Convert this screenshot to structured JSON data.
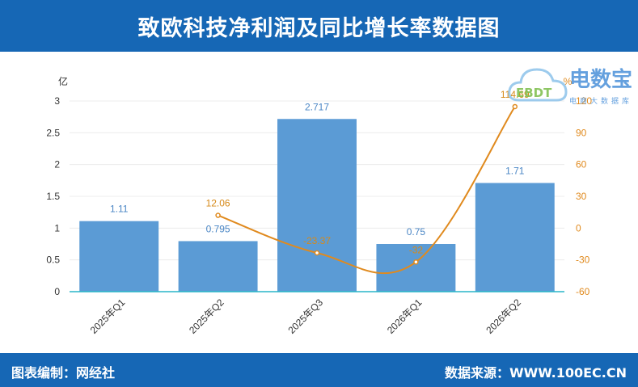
{
  "header": {
    "title": "致欧科技净利润及同比增长率数据图"
  },
  "footer": {
    "left": "图表编制：网经社",
    "right": "数据来源：WWW.100EC.CN"
  },
  "logo": {
    "main": "电数宝",
    "sub": "电商大数据库",
    "cloud_text": "EBDT"
  },
  "chart_data": {
    "type": "bar",
    "categories": [
      "2025年Q1",
      "2025年Q2",
      "2025年Q3",
      "2026年Q1",
      "2026年Q2"
    ],
    "series": [
      {
        "type": "bar",
        "axis": "left",
        "values": [
          1.11,
          0.795,
          2.717,
          0.75,
          1.71
        ],
        "labels": [
          "1.11",
          "0.795",
          "2.717",
          "0.75",
          "1.71"
        ],
        "color": "#5b9bd5"
      },
      {
        "type": "line",
        "axis": "right",
        "values": [
          null,
          12.06,
          -23.37,
          -32,
          114.69
        ],
        "labels": [
          "",
          "12.06",
          "-23.37",
          "-32",
          "114.69"
        ],
        "color": "#e08a1e"
      }
    ],
    "y_left": {
      "unit": "亿",
      "min": 0,
      "max": 3,
      "ticks": [
        "0",
        "0.5",
        "1",
        "1.5",
        "2",
        "2.5",
        "3"
      ]
    },
    "y_right": {
      "unit": "%",
      "min": -60,
      "max": 120,
      "ticks": [
        "-60",
        "-30",
        "0",
        "30",
        "60",
        "90",
        "120"
      ]
    },
    "grid": true,
    "colors": {
      "bar": "#5b9bd5",
      "line": "#e08a1e",
      "bar_label": "#4a86c5",
      "line_label": "#d68a1a",
      "axis_line": "#29b6c9"
    }
  }
}
